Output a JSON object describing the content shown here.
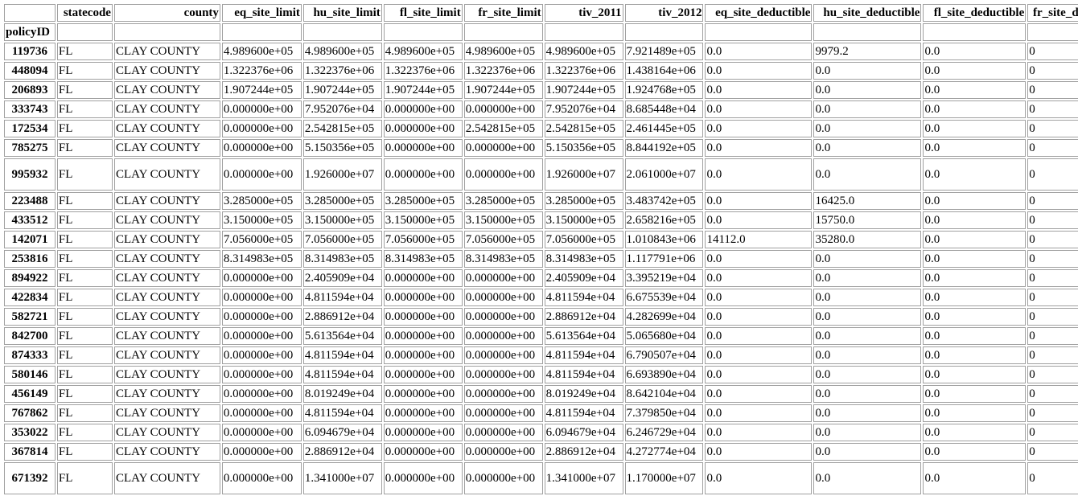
{
  "table": {
    "index_name": "policyID",
    "columns": [
      "statecode",
      "county",
      "eq_site_limit",
      "hu_site_limit",
      "fl_site_limit",
      "fr_site_limit",
      "tiv_2011",
      "tiv_2012",
      "eq_site_deductible",
      "hu_site_deductible",
      "fl_site_deductible",
      "fr_site_deductible"
    ],
    "rows": [
      {
        "id": "119736",
        "tall": false,
        "cells": [
          "FL",
          "CLAY COUNTY",
          "4.989600e+05",
          "4.989600e+05",
          "4.989600e+05",
          "4.989600e+05",
          "4.989600e+05",
          "7.921489e+05",
          "0.0",
          "9979.2",
          "0.0",
          "0"
        ]
      },
      {
        "id": "448094",
        "tall": false,
        "cells": [
          "FL",
          "CLAY COUNTY",
          "1.322376e+06",
          "1.322376e+06",
          "1.322376e+06",
          "1.322376e+06",
          "1.322376e+06",
          "1.438164e+06",
          "0.0",
          "0.0",
          "0.0",
          "0"
        ]
      },
      {
        "id": "206893",
        "tall": false,
        "cells": [
          "FL",
          "CLAY COUNTY",
          "1.907244e+05",
          "1.907244e+05",
          "1.907244e+05",
          "1.907244e+05",
          "1.907244e+05",
          "1.924768e+05",
          "0.0",
          "0.0",
          "0.0",
          "0"
        ]
      },
      {
        "id": "333743",
        "tall": false,
        "cells": [
          "FL",
          "CLAY COUNTY",
          "0.000000e+00",
          "7.952076e+04",
          "0.000000e+00",
          "0.000000e+00",
          "7.952076e+04",
          "8.685448e+04",
          "0.0",
          "0.0",
          "0.0",
          "0"
        ]
      },
      {
        "id": "172534",
        "tall": false,
        "cells": [
          "FL",
          "CLAY COUNTY",
          "0.000000e+00",
          "2.542815e+05",
          "0.000000e+00",
          "2.542815e+05",
          "2.542815e+05",
          "2.461445e+05",
          "0.0",
          "0.0",
          "0.0",
          "0"
        ]
      },
      {
        "id": "785275",
        "tall": false,
        "cells": [
          "FL",
          "CLAY COUNTY",
          "0.000000e+00",
          "5.150356e+05",
          "0.000000e+00",
          "0.000000e+00",
          "5.150356e+05",
          "8.844192e+05",
          "0.0",
          "0.0",
          "0.0",
          "0"
        ]
      },
      {
        "id": "995932",
        "tall": true,
        "cells": [
          "FL",
          "CLAY COUNTY",
          "0.000000e+00",
          "1.926000e+07",
          "0.000000e+00",
          "0.000000e+00",
          "1.926000e+07",
          "2.061000e+07",
          "0.0",
          "0.0",
          "0.0",
          "0"
        ]
      },
      {
        "id": "223488",
        "tall": false,
        "cells": [
          "FL",
          "CLAY COUNTY",
          "3.285000e+05",
          "3.285000e+05",
          "3.285000e+05",
          "3.285000e+05",
          "3.285000e+05",
          "3.483742e+05",
          "0.0",
          "16425.0",
          "0.0",
          "0"
        ]
      },
      {
        "id": "433512",
        "tall": false,
        "cells": [
          "FL",
          "CLAY COUNTY",
          "3.150000e+05",
          "3.150000e+05",
          "3.150000e+05",
          "3.150000e+05",
          "3.150000e+05",
          "2.658216e+05",
          "0.0",
          "15750.0",
          "0.0",
          "0"
        ]
      },
      {
        "id": "142071",
        "tall": false,
        "cells": [
          "FL",
          "CLAY COUNTY",
          "7.056000e+05",
          "7.056000e+05",
          "7.056000e+05",
          "7.056000e+05",
          "7.056000e+05",
          "1.010843e+06",
          "14112.0",
          "35280.0",
          "0.0",
          "0"
        ]
      },
      {
        "id": "253816",
        "tall": false,
        "cells": [
          "FL",
          "CLAY COUNTY",
          "8.314983e+05",
          "8.314983e+05",
          "8.314983e+05",
          "8.314983e+05",
          "8.314983e+05",
          "1.117791e+06",
          "0.0",
          "0.0",
          "0.0",
          "0"
        ]
      },
      {
        "id": "894922",
        "tall": false,
        "cells": [
          "FL",
          "CLAY COUNTY",
          "0.000000e+00",
          "2.405909e+04",
          "0.000000e+00",
          "0.000000e+00",
          "2.405909e+04",
          "3.395219e+04",
          "0.0",
          "0.0",
          "0.0",
          "0"
        ]
      },
      {
        "id": "422834",
        "tall": false,
        "cells": [
          "FL",
          "CLAY COUNTY",
          "0.000000e+00",
          "4.811594e+04",
          "0.000000e+00",
          "0.000000e+00",
          "4.811594e+04",
          "6.675539e+04",
          "0.0",
          "0.0",
          "0.0",
          "0"
        ]
      },
      {
        "id": "582721",
        "tall": false,
        "cells": [
          "FL",
          "CLAY COUNTY",
          "0.000000e+00",
          "2.886912e+04",
          "0.000000e+00",
          "0.000000e+00",
          "2.886912e+04",
          "4.282699e+04",
          "0.0",
          "0.0",
          "0.0",
          "0"
        ]
      },
      {
        "id": "842700",
        "tall": false,
        "cells": [
          "FL",
          "CLAY COUNTY",
          "0.000000e+00",
          "5.613564e+04",
          "0.000000e+00",
          "0.000000e+00",
          "5.613564e+04",
          "5.065680e+04",
          "0.0",
          "0.0",
          "0.0",
          "0"
        ]
      },
      {
        "id": "874333",
        "tall": false,
        "cells": [
          "FL",
          "CLAY COUNTY",
          "0.000000e+00",
          "4.811594e+04",
          "0.000000e+00",
          "0.000000e+00",
          "4.811594e+04",
          "6.790507e+04",
          "0.0",
          "0.0",
          "0.0",
          "0"
        ]
      },
      {
        "id": "580146",
        "tall": false,
        "cells": [
          "FL",
          "CLAY COUNTY",
          "0.000000e+00",
          "4.811594e+04",
          "0.000000e+00",
          "0.000000e+00",
          "4.811594e+04",
          "6.693890e+04",
          "0.0",
          "0.0",
          "0.0",
          "0"
        ]
      },
      {
        "id": "456149",
        "tall": false,
        "cells": [
          "FL",
          "CLAY COUNTY",
          "0.000000e+00",
          "8.019249e+04",
          "0.000000e+00",
          "0.000000e+00",
          "8.019249e+04",
          "8.642104e+04",
          "0.0",
          "0.0",
          "0.0",
          "0"
        ]
      },
      {
        "id": "767862",
        "tall": false,
        "cells": [
          "FL",
          "CLAY COUNTY",
          "0.000000e+00",
          "4.811594e+04",
          "0.000000e+00",
          "0.000000e+00",
          "4.811594e+04",
          "7.379850e+04",
          "0.0",
          "0.0",
          "0.0",
          "0"
        ]
      },
      {
        "id": "353022",
        "tall": false,
        "cells": [
          "FL",
          "CLAY COUNTY",
          "0.000000e+00",
          "6.094679e+04",
          "0.000000e+00",
          "0.000000e+00",
          "6.094679e+04",
          "6.246729e+04",
          "0.0",
          "0.0",
          "0.0",
          "0"
        ]
      },
      {
        "id": "367814",
        "tall": false,
        "cells": [
          "FL",
          "CLAY COUNTY",
          "0.000000e+00",
          "2.886912e+04",
          "0.000000e+00",
          "0.000000e+00",
          "2.886912e+04",
          "4.272774e+04",
          "0.0",
          "0.0",
          "0.0",
          "0"
        ]
      },
      {
        "id": "671392",
        "tall": true,
        "cells": [
          "FL",
          "CLAY COUNTY",
          "0.000000e+00",
          "1.341000e+07",
          "0.000000e+00",
          "0.000000e+00",
          "1.341000e+07",
          "1.170000e+07",
          "0.0",
          "0.0",
          "0.0",
          "0"
        ]
      }
    ]
  }
}
